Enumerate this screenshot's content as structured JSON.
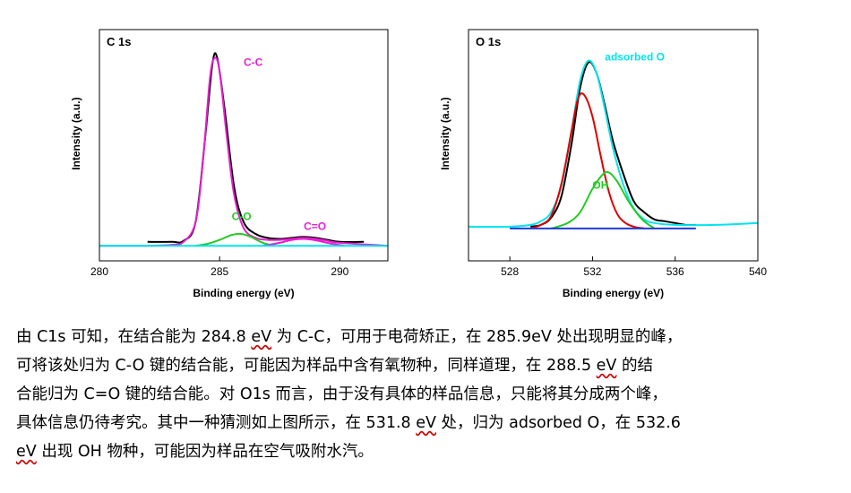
{
  "chart_data": [
    {
      "type": "line",
      "panel_label": "C 1s",
      "xlabel": "Binding energy (eV)",
      "ylabel": "Intensity (a.u.)",
      "xlim": [
        280,
        292
      ],
      "ylim": [
        0,
        1.0
      ],
      "xticks": [
        280,
        285,
        290
      ],
      "grid": false,
      "annotations": [
        {
          "text": "C-C",
          "x": 286.0,
          "y": 0.91,
          "color": "#e81ecf"
        },
        {
          "text": "C-O",
          "x": 285.5,
          "y": 0.13,
          "color": "#22cc22"
        },
        {
          "text": "C=O",
          "x": 288.5,
          "y": 0.08,
          "color": "#e81ecf"
        }
      ],
      "series": [
        {
          "color": "#000000",
          "x": [
            282,
            283,
            283.5,
            284,
            284.4,
            284.7,
            284.9,
            285.2,
            285.6,
            286.0,
            286.5,
            287.0,
            287.5,
            288.0,
            288.5,
            289.0,
            289.5,
            290.0,
            291.0
          ],
          "y": [
            0.02,
            0.02,
            0.025,
            0.12,
            0.55,
            0.92,
            0.95,
            0.7,
            0.3,
            0.12,
            0.06,
            0.04,
            0.035,
            0.04,
            0.045,
            0.04,
            0.03,
            0.02,
            0.02
          ]
        },
        {
          "name": "C-C",
          "color": "#e81ecf",
          "x": [
            280,
            282,
            283,
            283.5,
            284,
            284.3,
            284.6,
            284.8,
            285.0,
            285.3,
            285.6,
            286.0,
            286.5,
            287.0,
            287.5,
            288.0,
            288.5,
            289.0,
            289.5,
            290,
            292
          ],
          "y": [
            0.0,
            0.0,
            0.005,
            0.02,
            0.12,
            0.42,
            0.85,
            0.95,
            0.88,
            0.55,
            0.26,
            0.09,
            0.04,
            0.03,
            0.03,
            0.035,
            0.04,
            0.035,
            0.025,
            0.015,
            0.0
          ]
        },
        {
          "name": "C-O",
          "color": "#22cc22",
          "x": [
            284.0,
            284.5,
            285.0,
            285.5,
            285.9,
            286.3,
            286.8,
            287.3
          ],
          "y": [
            0.0,
            0.01,
            0.03,
            0.055,
            0.06,
            0.045,
            0.015,
            0.0
          ]
        },
        {
          "name": "C=O",
          "color": "#e81ecf",
          "x": [
            286.8,
            287.5,
            288.0,
            288.5,
            289.0,
            289.6,
            290.2
          ],
          "y": [
            0.0,
            0.015,
            0.03,
            0.035,
            0.028,
            0.012,
            0.0
          ]
        },
        {
          "name": "baseline",
          "color": "#00e5ee",
          "x": [
            280,
            292
          ],
          "y": [
            0.0,
            0.0
          ]
        }
      ]
    },
    {
      "type": "line",
      "panel_label": "O 1s",
      "xlabel": "Binding energy (eV)",
      "ylabel": "Intensity (a.u.)",
      "xlim": [
        526,
        540
      ],
      "ylim": [
        0,
        1.0
      ],
      "xticks": [
        528,
        532,
        536,
        540
      ],
      "grid": false,
      "annotations": [
        {
          "text": "adsorbed O",
          "x": 532.6,
          "y": 0.93,
          "color": "#00e5ee"
        },
        {
          "text": "OH",
          "x": 532.0,
          "y": 0.22,
          "color": "#22cc22"
        }
      ],
      "series": [
        {
          "color": "#000000",
          "x": [
            529,
            529.5,
            530,
            530.5,
            531.0,
            531.4,
            531.8,
            532.2,
            532.6,
            533.0,
            533.5,
            534.0,
            534.5,
            535.0,
            535.5,
            536.0,
            536.5,
            537.0
          ],
          "y": [
            0.01,
            0.02,
            0.06,
            0.18,
            0.48,
            0.78,
            0.92,
            0.86,
            0.68,
            0.48,
            0.3,
            0.15,
            0.09,
            0.05,
            0.04,
            0.03,
            0.02,
            0.02
          ]
        },
        {
          "name": "adsorbed O",
          "color": "#00e5ee",
          "x": [
            526,
            528,
            529,
            529.5,
            530,
            530.5,
            531.0,
            531.4,
            531.8,
            532.2,
            532.6,
            533.0,
            533.5,
            534.0,
            534.5,
            535.0,
            536,
            538,
            540
          ],
          "y": [
            0.01,
            0.01,
            0.02,
            0.04,
            0.09,
            0.24,
            0.55,
            0.82,
            0.93,
            0.86,
            0.66,
            0.44,
            0.24,
            0.11,
            0.05,
            0.03,
            0.02,
            0.02,
            0.03
          ]
        },
        {
          "color": "#e00000",
          "x": [
            529.0,
            529.5,
            530.0,
            530.5,
            531.0,
            531.3,
            531.6,
            532.0,
            532.4,
            532.8,
            533.2,
            533.6,
            534.0,
            534.5
          ],
          "y": [
            0.0,
            0.02,
            0.07,
            0.25,
            0.55,
            0.72,
            0.74,
            0.62,
            0.4,
            0.2,
            0.08,
            0.03,
            0.01,
            0.0
          ]
        },
        {
          "name": "OH",
          "color": "#22cc22",
          "x": [
            530.0,
            530.8,
            531.4,
            532.0,
            532.5,
            532.8,
            533.2,
            533.8,
            534.4,
            535.0
          ],
          "y": [
            0.0,
            0.03,
            0.09,
            0.22,
            0.3,
            0.31,
            0.26,
            0.14,
            0.05,
            0.0
          ]
        },
        {
          "name": "baseline",
          "color": "#1f3bd6",
          "x": [
            528.0,
            537.0
          ],
          "y": [
            0.0,
            0.0
          ]
        }
      ]
    }
  ],
  "caption": {
    "lines": [
      [
        {
          "t": "由 C1s 可知，在结合能为 284.8 ",
          "u": false
        },
        {
          "t": "eV",
          "u": true
        },
        {
          "t": " 为 C-C，可用于电荷矫正，在 285.9eV 处出现明显的峰，",
          "u": false
        }
      ],
      [
        {
          "t": "可将该处归为 C-O 键的结合能，可能因为样品中含有氧物种，同样道理，在 288.5 ",
          "u": false
        },
        {
          "t": "eV",
          "u": true
        },
        {
          "t": " 的结",
          "u": false
        }
      ],
      [
        {
          "t": "合能归为 C=O 键的结合能。对 O1s 而言，由于没有具体的样品信息，只能将其分成两个峰，",
          "u": false
        }
      ],
      [
        {
          "t": "具体信息仍待考究。其中一种猜测如上图所示，在 531.8 ",
          "u": false
        },
        {
          "t": "eV",
          "u": true
        },
        {
          "t": " 处，归为 adsorbed O，在 532.6",
          "u": false
        }
      ],
      [
        {
          "t": "eV",
          "u": true
        },
        {
          "t": " 出现 OH 物种，可能因为样品在空气吸附水汽。",
          "u": false
        }
      ]
    ]
  }
}
